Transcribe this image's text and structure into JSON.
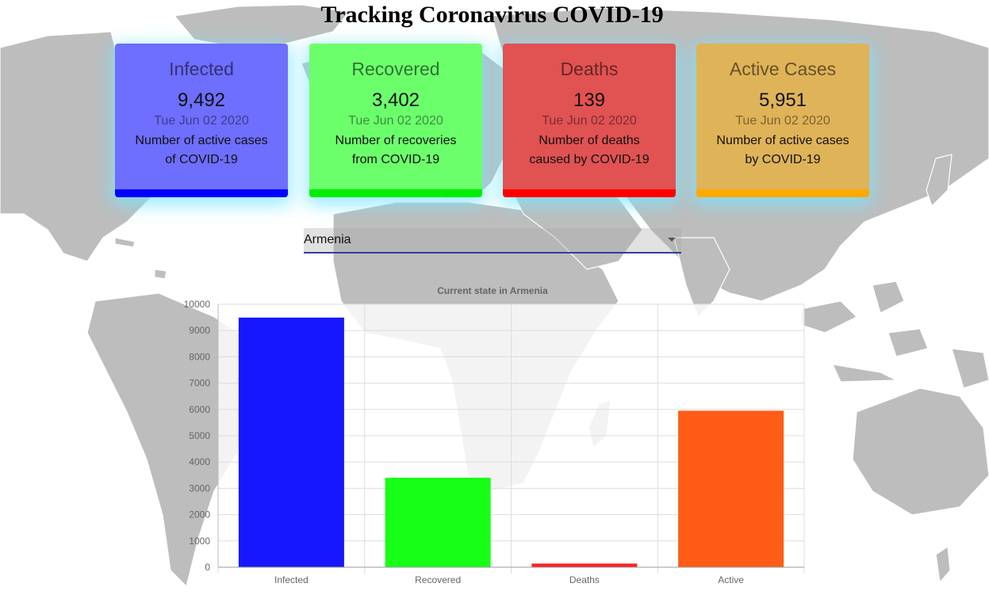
{
  "header": {
    "title": "Tracking Coronavirus COVID-19"
  },
  "cards": [
    {
      "title": "Infected",
      "count": "9,492",
      "date": "Tue Jun 02 2020",
      "description": "Number of active cases of COVID-19",
      "fill": "#6e6eff",
      "accent": "#0000ff"
    },
    {
      "title": "Recovered",
      "count": "3,402",
      "date": "Tue Jun 02 2020",
      "description": "Number of recoveries from COVID-19",
      "fill": "#6cff6c",
      "accent": "#00ee00"
    },
    {
      "title": "Deaths",
      "count": "139",
      "date": "Tue Jun 02 2020",
      "description": "Number of deaths caused by COVID-19",
      "fill": "#e15252",
      "accent": "#ff0000"
    },
    {
      "title": "Active Cases",
      "count": "5,951",
      "date": "Tue Jun 02 2020",
      "description": "Number of active cases by COVID-19",
      "fill": "#dfb358",
      "accent": "#ffaa00"
    }
  ],
  "country_select": {
    "value": "Armenia"
  },
  "chart_data": {
    "type": "bar",
    "title": "Current state in Armenia",
    "categories": [
      "Infected",
      "Recovered",
      "Deaths",
      "Active"
    ],
    "values": [
      9492,
      3402,
      139,
      5951
    ],
    "colors": [
      "#1717ff",
      "#17ff17",
      "#ff2020",
      "#ff5c17"
    ],
    "ylim": [
      0,
      10000
    ],
    "yticks": [
      0,
      1000,
      2000,
      3000,
      4000,
      5000,
      6000,
      7000,
      8000,
      9000,
      10000
    ],
    "grid": true,
    "legend": "none"
  }
}
